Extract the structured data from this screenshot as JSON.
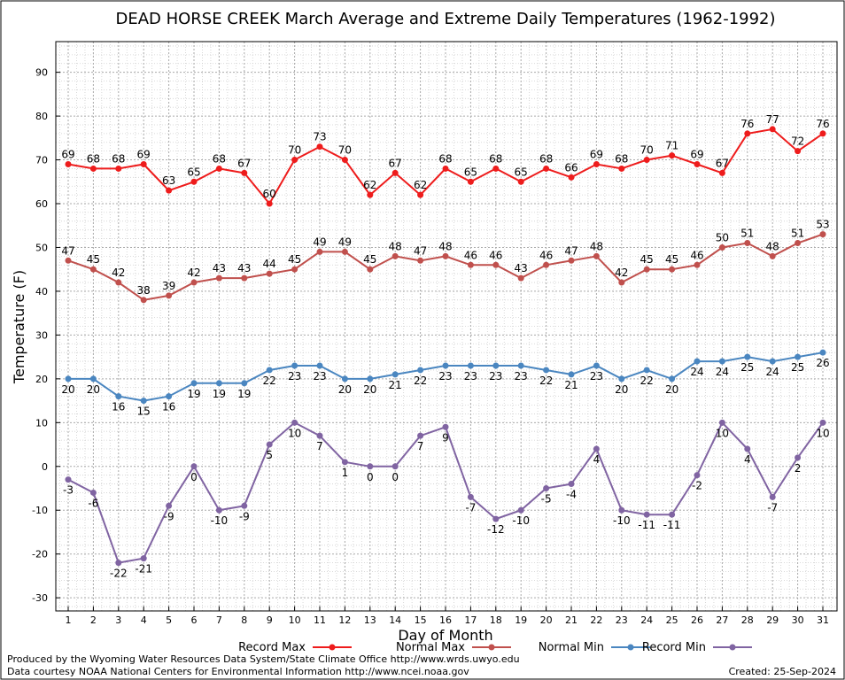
{
  "chart_data": {
    "type": "line",
    "title": "DEAD HORSE CREEK March Average and Extreme Daily Temperatures (1962-1992)",
    "xlabel": "Day of Month",
    "ylabel": "Temperature (F)",
    "ylim": [
      -33,
      97
    ],
    "yticks": [
      -30,
      -20,
      -10,
      0,
      10,
      20,
      30,
      40,
      50,
      60,
      70,
      80,
      90
    ],
    "grid": true,
    "legend_position": "bottom",
    "x": [
      1,
      2,
      3,
      4,
      5,
      6,
      7,
      8,
      9,
      10,
      11,
      12,
      13,
      14,
      15,
      16,
      17,
      18,
      19,
      20,
      21,
      22,
      23,
      24,
      25,
      26,
      27,
      28,
      29,
      30,
      31
    ],
    "series": [
      {
        "name": "Record Max",
        "color": "#ee1c1c",
        "values": [
          69,
          68,
          68,
          69,
          63,
          65,
          68,
          67,
          60,
          70,
          73,
          70,
          62,
          67,
          62,
          68,
          65,
          68,
          65,
          68,
          66,
          69,
          68,
          70,
          71,
          69,
          67,
          76,
          77,
          72,
          76
        ]
      },
      {
        "name": "Normal Max",
        "color": "#c0504d",
        "values": [
          47,
          45,
          42,
          38,
          39,
          42,
          43,
          43,
          44,
          45,
          49,
          49,
          45,
          48,
          47,
          48,
          46,
          46,
          43,
          46,
          47,
          48,
          42,
          45,
          45,
          46,
          50,
          51,
          48,
          51,
          53
        ]
      },
      {
        "name": "Normal Min",
        "color": "#4a86c0",
        "values": [
          20,
          20,
          16,
          15,
          16,
          19,
          19,
          19,
          22,
          23,
          23,
          20,
          20,
          21,
          22,
          23,
          23,
          23,
          23,
          22,
          21,
          23,
          20,
          22,
          20,
          24,
          24,
          25,
          24,
          25,
          26
        ]
      },
      {
        "name": "Record Min",
        "color": "#8064a2",
        "values": [
          -3,
          -6,
          -22,
          -21,
          -9,
          0,
          -10,
          -9,
          5,
          10,
          7,
          1,
          0,
          0,
          7,
          9,
          -7,
          -12,
          -10,
          -5,
          -4,
          4,
          -10,
          -11,
          -11,
          -2,
          10,
          4,
          -7,
          2,
          10
        ]
      }
    ]
  },
  "footer": {
    "credit_line1": "Produced by the Wyoming Water Resources Data System/State Climate Office http://www.wrds.uwyo.edu",
    "credit_line2": "Data courtesy NOAA National Centers for Environmental Information http://www.ncei.noaa.gov",
    "created": "Created: 25-Sep-2024"
  }
}
